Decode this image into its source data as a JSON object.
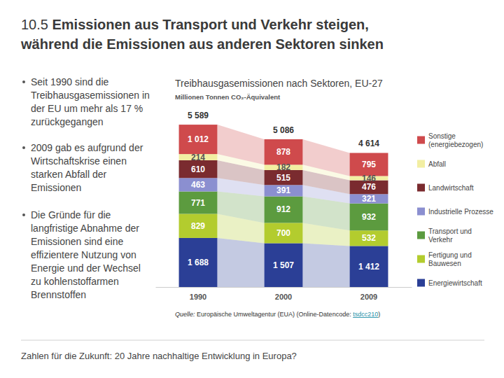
{
  "slide": {
    "number": "10.5",
    "title": [
      "Emissionen aus Transport und Verkehr steigen,",
      "während die Emissionen aus anderen Sektoren sinken"
    ],
    "bullets": [
      "Seit 1990 sind die Treibhausgasemissionen in der EU um mehr als 17 % zurückgegangen",
      "2009 gab es aufgrund der Wirtschaftskrise einen starken Abfall der Emissionen",
      "Die Gründe für die langfristige Abnahme der Emissionen sind eine effizientere Nutzung von Energie und der Wechsel zu kohlenstoffarmen Brennstoffen"
    ],
    "footer": "Zahlen für die Zukunft: 20 Jahre nachhaltige Entwicklung in Europa?"
  },
  "chart_data": {
    "type": "bar",
    "stacked": true,
    "data_labels": true,
    "tick_labels": "x",
    "legend": "right",
    "title": "Treibhausgasemissionen nach Sektoren, EU-27",
    "y_label": "Millionen Tonnen CO₂-Äquivalent",
    "categories": [
      "1990",
      "2000",
      "2009"
    ],
    "ylim": [
      0,
      5589
    ],
    "series": [
      {
        "name": "Energiewirtschaft",
        "color": "#2b3f96",
        "values": [
          1688,
          1507,
          1412
        ],
        "value_labels": [
          "1 688",
          "1 507",
          "1 412"
        ]
      },
      {
        "name": "Fertigung und Bauwesen",
        "color": "#b3cc2e",
        "values": [
          829,
          700,
          532
        ]
      },
      {
        "name": "Transport und Verkehr",
        "color": "#5c9b3f",
        "values": [
          771,
          912,
          932
        ]
      },
      {
        "name": "Industrielle Prozesse",
        "color": "#8b8fd0",
        "values": [
          463,
          391,
          321
        ]
      },
      {
        "name": "Landwirtschaft",
        "color": "#7a2b2f",
        "values": [
          610,
          515,
          476
        ]
      },
      {
        "name": "Abfall",
        "color": "#f2eea2",
        "values": [
          214,
          182,
          146
        ]
      },
      {
        "name": "Sonstige (energiebezogen)",
        "color": "#cf4a4c",
        "values": [
          1012,
          878,
          795
        ],
        "value_labels": [
          "1 012",
          "878",
          "795"
        ]
      }
    ],
    "totals": [
      5589,
      5086,
      4614
    ],
    "total_labels": [
      "5 589",
      "5 086",
      "4 614"
    ],
    "source": {
      "label": "Quelle:",
      "text": "Europäische Umweltagentur (EUA) (Online-Datencode:",
      "link": "tsdcc210",
      "end": ")"
    }
  }
}
